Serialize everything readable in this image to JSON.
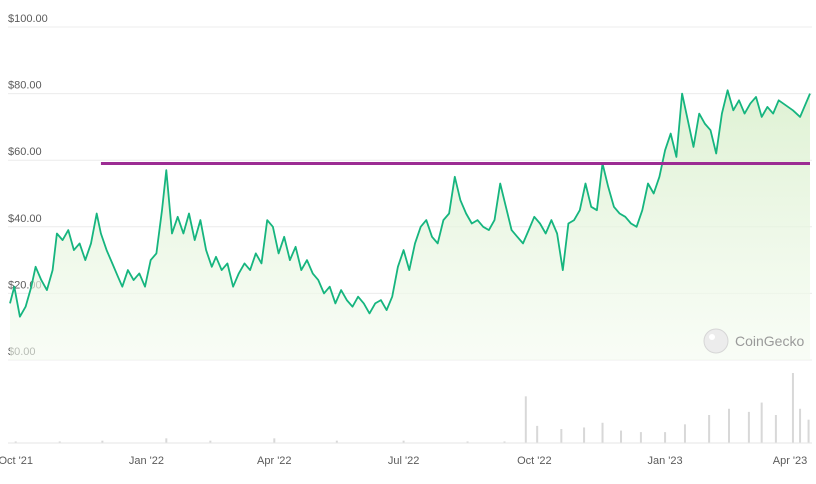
{
  "chart_data": {
    "type": "area",
    "title": "",
    "xlabel": "",
    "ylabel": "",
    "ylim": [
      0,
      100
    ],
    "y_ticks": [
      {
        "value": 0,
        "label": "$0.00"
      },
      {
        "value": 20,
        "label": "$20.00"
      },
      {
        "value": 40,
        "label": "$40.00"
      },
      {
        "value": 60,
        "label": "$60.00"
      },
      {
        "value": 80,
        "label": "$80.00"
      },
      {
        "value": 100,
        "label": "$100.00"
      }
    ],
    "x_range": [
      "2021-09-27",
      "2023-04-13"
    ],
    "x_ticks": [
      {
        "date": "2021-10-01",
        "label": "Oct '21"
      },
      {
        "date": "2022-01-01",
        "label": "Jan '22"
      },
      {
        "date": "2022-04-01",
        "label": "Apr '22"
      },
      {
        "date": "2022-07-01",
        "label": "Jul '22"
      },
      {
        "date": "2022-10-01",
        "label": "Oct '22"
      },
      {
        "date": "2023-01-01",
        "label": "Jan '23"
      },
      {
        "date": "2023-04-01",
        "label": "Apr '23"
      }
    ],
    "grid": true,
    "line_color": "#16b57f",
    "fill_color": "#e7f5df",
    "reference_line": {
      "value": 59,
      "from": "2021-11-30",
      "to": "2023-04-13",
      "color": "#9c2c93"
    },
    "series": [
      {
        "points": [
          [
            "2021-09-27",
            17
          ],
          [
            "2021-09-30",
            22
          ],
          [
            "2021-10-04",
            13
          ],
          [
            "2021-10-08",
            16
          ],
          [
            "2021-10-12",
            22
          ],
          [
            "2021-10-15",
            28
          ],
          [
            "2021-10-19",
            24
          ],
          [
            "2021-10-23",
            21
          ],
          [
            "2021-10-27",
            27
          ],
          [
            "2021-10-30",
            38
          ],
          [
            "2021-11-03",
            36
          ],
          [
            "2021-11-07",
            39
          ],
          [
            "2021-11-11",
            33
          ],
          [
            "2021-11-15",
            35
          ],
          [
            "2021-11-19",
            30
          ],
          [
            "2021-11-23",
            35
          ],
          [
            "2021-11-27",
            44
          ],
          [
            "2021-11-30",
            38
          ],
          [
            "2021-12-04",
            33
          ],
          [
            "2021-12-08",
            29
          ],
          [
            "2021-12-12",
            25
          ],
          [
            "2021-12-15",
            22
          ],
          [
            "2021-12-19",
            27
          ],
          [
            "2021-12-23",
            24
          ],
          [
            "2021-12-27",
            26
          ],
          [
            "2021-12-31",
            22
          ],
          [
            "2022-01-04",
            30
          ],
          [
            "2022-01-08",
            32
          ],
          [
            "2022-01-12",
            45
          ],
          [
            "2022-01-15",
            57
          ],
          [
            "2022-01-19",
            38
          ],
          [
            "2022-01-23",
            43
          ],
          [
            "2022-01-27",
            38
          ],
          [
            "2022-01-31",
            44
          ],
          [
            "2022-02-04",
            36
          ],
          [
            "2022-02-08",
            42
          ],
          [
            "2022-02-12",
            33
          ],
          [
            "2022-02-16",
            28
          ],
          [
            "2022-02-19",
            31
          ],
          [
            "2022-02-23",
            27
          ],
          [
            "2022-02-27",
            29
          ],
          [
            "2022-03-03",
            22
          ],
          [
            "2022-03-07",
            26
          ],
          [
            "2022-03-11",
            29
          ],
          [
            "2022-03-15",
            27
          ],
          [
            "2022-03-19",
            32
          ],
          [
            "2022-03-23",
            29
          ],
          [
            "2022-03-27",
            42
          ],
          [
            "2022-03-31",
            40
          ],
          [
            "2022-04-04",
            32
          ],
          [
            "2022-04-08",
            37
          ],
          [
            "2022-04-12",
            30
          ],
          [
            "2022-04-16",
            34
          ],
          [
            "2022-04-20",
            27
          ],
          [
            "2022-04-24",
            30
          ],
          [
            "2022-04-28",
            26
          ],
          [
            "2022-05-02",
            24
          ],
          [
            "2022-05-06",
            20
          ],
          [
            "2022-05-10",
            22
          ],
          [
            "2022-05-14",
            17
          ],
          [
            "2022-05-18",
            21
          ],
          [
            "2022-05-22",
            18
          ],
          [
            "2022-05-26",
            16
          ],
          [
            "2022-05-30",
            19
          ],
          [
            "2022-06-03",
            17
          ],
          [
            "2022-06-07",
            14
          ],
          [
            "2022-06-11",
            17
          ],
          [
            "2022-06-15",
            18
          ],
          [
            "2022-06-19",
            15
          ],
          [
            "2022-06-23",
            19
          ],
          [
            "2022-06-27",
            28
          ],
          [
            "2022-07-01",
            33
          ],
          [
            "2022-07-05",
            27
          ],
          [
            "2022-07-09",
            35
          ],
          [
            "2022-07-13",
            40
          ],
          [
            "2022-07-17",
            42
          ],
          [
            "2022-07-21",
            37
          ],
          [
            "2022-07-25",
            35
          ],
          [
            "2022-07-29",
            42
          ],
          [
            "2022-08-02",
            44
          ],
          [
            "2022-08-06",
            55
          ],
          [
            "2022-08-10",
            48
          ],
          [
            "2022-08-14",
            44
          ],
          [
            "2022-08-18",
            41
          ],
          [
            "2022-08-22",
            42
          ],
          [
            "2022-08-26",
            40
          ],
          [
            "2022-08-30",
            39
          ],
          [
            "2022-09-03",
            42
          ],
          [
            "2022-09-07",
            53
          ],
          [
            "2022-09-11",
            46
          ],
          [
            "2022-09-15",
            39
          ],
          [
            "2022-09-19",
            37
          ],
          [
            "2022-09-23",
            35
          ],
          [
            "2022-09-27",
            39
          ],
          [
            "2022-10-01",
            43
          ],
          [
            "2022-10-05",
            41
          ],
          [
            "2022-10-09",
            38
          ],
          [
            "2022-10-13",
            42
          ],
          [
            "2022-10-17",
            38
          ],
          [
            "2022-10-21",
            27
          ],
          [
            "2022-10-25",
            41
          ],
          [
            "2022-10-29",
            42
          ],
          [
            "2022-11-02",
            45
          ],
          [
            "2022-11-06",
            53
          ],
          [
            "2022-11-10",
            46
          ],
          [
            "2022-11-14",
            45
          ],
          [
            "2022-11-18",
            59
          ],
          [
            "2022-11-22",
            52
          ],
          [
            "2022-11-26",
            46
          ],
          [
            "2022-11-30",
            44
          ],
          [
            "2022-12-04",
            43
          ],
          [
            "2022-12-08",
            41
          ],
          [
            "2022-12-12",
            40
          ],
          [
            "2022-12-16",
            45
          ],
          [
            "2022-12-20",
            53
          ],
          [
            "2022-12-24",
            50
          ],
          [
            "2022-12-28",
            55
          ],
          [
            "2023-01-01",
            63
          ],
          [
            "2023-01-05",
            68
          ],
          [
            "2023-01-09",
            61
          ],
          [
            "2023-01-13",
            80
          ],
          [
            "2023-01-17",
            72
          ],
          [
            "2023-01-21",
            64
          ],
          [
            "2023-01-25",
            74
          ],
          [
            "2023-01-29",
            71
          ],
          [
            "2023-02-02",
            69
          ],
          [
            "2023-02-06",
            62
          ],
          [
            "2023-02-10",
            74
          ],
          [
            "2023-02-14",
            81
          ],
          [
            "2023-02-18",
            75
          ],
          [
            "2023-02-22",
            78
          ],
          [
            "2023-02-26",
            74
          ],
          [
            "2023-03-02",
            77
          ],
          [
            "2023-03-06",
            79
          ],
          [
            "2023-03-10",
            73
          ],
          [
            "2023-03-14",
            76
          ],
          [
            "2023-03-18",
            74
          ],
          [
            "2023-03-22",
            78
          ],
          [
            "2023-04-01",
            75
          ],
          [
            "2023-04-06",
            73
          ],
          [
            "2023-04-13",
            80
          ]
        ]
      }
    ],
    "volume": {
      "color": "#d8d8d8",
      "points": [
        [
          "2021-10-01",
          2
        ],
        [
          "2021-11-01",
          2
        ],
        [
          "2021-12-01",
          3
        ],
        [
          "2022-01-15",
          6
        ],
        [
          "2022-02-15",
          3
        ],
        [
          "2022-04-01",
          6
        ],
        [
          "2022-05-15",
          3
        ],
        [
          "2022-07-01",
          3
        ],
        [
          "2022-08-15",
          2
        ],
        [
          "2022-09-10",
          2
        ],
        [
          "2022-09-25",
          60
        ],
        [
          "2022-10-03",
          22
        ],
        [
          "2022-10-20",
          18
        ],
        [
          "2022-11-05",
          20
        ],
        [
          "2022-11-18",
          26
        ],
        [
          "2022-12-01",
          16
        ],
        [
          "2022-12-15",
          14
        ],
        [
          "2023-01-01",
          14
        ],
        [
          "2023-01-15",
          24
        ],
        [
          "2023-02-01",
          36
        ],
        [
          "2023-02-15",
          44
        ],
        [
          "2023-03-01",
          40
        ],
        [
          "2023-03-10",
          52
        ],
        [
          "2023-03-20",
          36
        ],
        [
          "2023-04-01",
          90
        ],
        [
          "2023-04-06",
          44
        ],
        [
          "2023-04-12",
          30
        ]
      ]
    }
  },
  "watermark": {
    "text": "CoinGecko",
    "icon": "coingecko-logo-icon"
  }
}
